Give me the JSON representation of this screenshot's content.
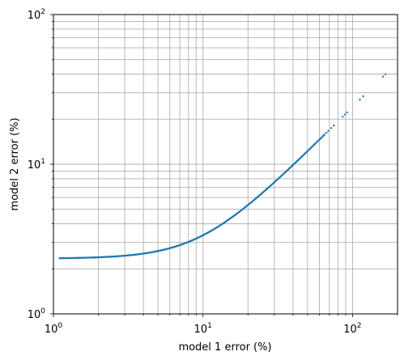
{
  "chart_data": {
    "type": "scatter",
    "xlabel": "model 1 error (%)",
    "ylabel": "model 2 error (%)",
    "xscale": "log",
    "yscale": "log",
    "xlim": [
      1,
      200
    ],
    "ylim": [
      1,
      100
    ],
    "grid": "major and minor",
    "x_ticks": [
      {
        "value": 1,
        "base": "10",
        "exp": "0"
      },
      {
        "value": 10,
        "base": "10",
        "exp": "1"
      },
      {
        "value": 100,
        "base": "10",
        "exp": "2"
      }
    ],
    "y_ticks": [
      {
        "value": 1,
        "base": "10",
        "exp": "0"
      },
      {
        "value": 10,
        "base": "10",
        "exp": "1"
      },
      {
        "value": 100,
        "base": "10",
        "exp": "2"
      }
    ],
    "point_color": "#1f77b4",
    "curve_model": "y = sqrt(2.34^2 + (0.24*x)^2)",
    "series": [
      {
        "x_range": [
          1.1,
          65
        ],
        "samples": 320,
        "sparse_x": [
          67,
          69,
          72,
          75,
          86,
          89,
          92,
          112,
          118,
          160,
          166
        ]
      }
    ]
  }
}
